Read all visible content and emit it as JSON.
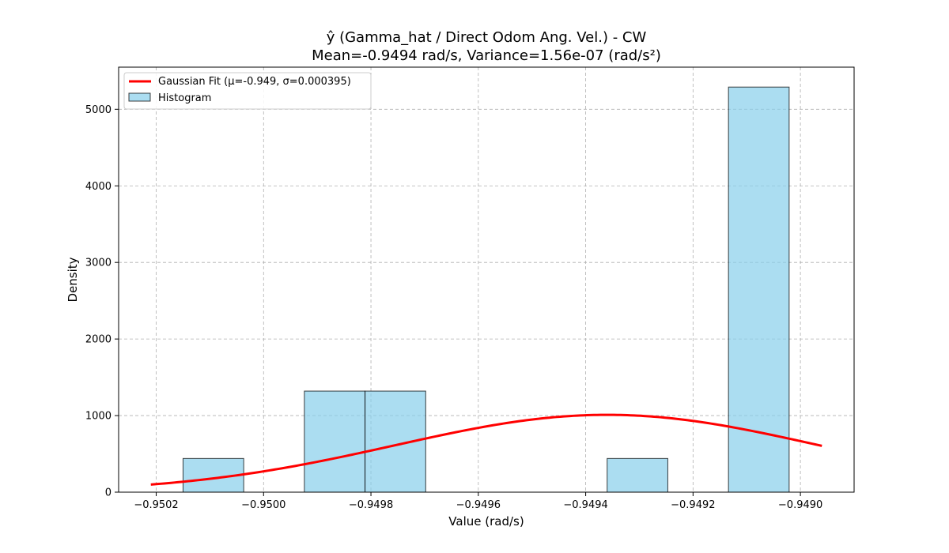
{
  "chart_data": {
    "type": "bar",
    "title": "ŷ (Gamma_hat / Direct Odom Ang. Vel.) - CW",
    "subtitle": "Mean=-0.9494 rad/s, Variance=1.56e-07 (rad/s²)",
    "xlabel": "Value (rad/s)",
    "ylabel": "Density",
    "xlim": [
      -0.95027,
      -0.9489
    ],
    "ylim": [
      0,
      5550
    ],
    "grid": true,
    "legend_position": "top-left",
    "x_ticks": [
      -0.9502,
      -0.95,
      -0.9498,
      -0.9496,
      -0.9494,
      -0.9492,
      -0.949
    ],
    "x_tick_labels": [
      "−0.9502",
      "−0.9500",
      "−0.9498",
      "−0.9496",
      "−0.9494",
      "−0.9492",
      "−0.9490"
    ],
    "y_ticks": [
      0,
      1000,
      2000,
      3000,
      4000,
      5000
    ],
    "y_tick_labels": [
      "0",
      "1000",
      "2000",
      "3000",
      "4000",
      "5000"
    ],
    "histogram": {
      "name": "Histogram",
      "color": "#87ceeb",
      "bins": [
        {
          "x0": -0.95015,
          "x1": -0.950037,
          "density": 440
        },
        {
          "x0": -0.949924,
          "x1": -0.949811,
          "density": 1320
        },
        {
          "x0": -0.949811,
          "x1": -0.949698,
          "density": 1320
        },
        {
          "x0": -0.94936,
          "x1": -0.949247,
          "density": 440
        },
        {
          "x0": -0.949134,
          "x1": -0.949021,
          "density": 5290
        }
      ]
    },
    "gaussian_fit": {
      "name": "Gaussian Fit (μ=-0.949, σ=0.000395)",
      "color": "#ff0000",
      "mu": -0.94936,
      "sigma": 0.000395,
      "x_range": [
        -0.95021,
        -0.94896
      ]
    }
  }
}
